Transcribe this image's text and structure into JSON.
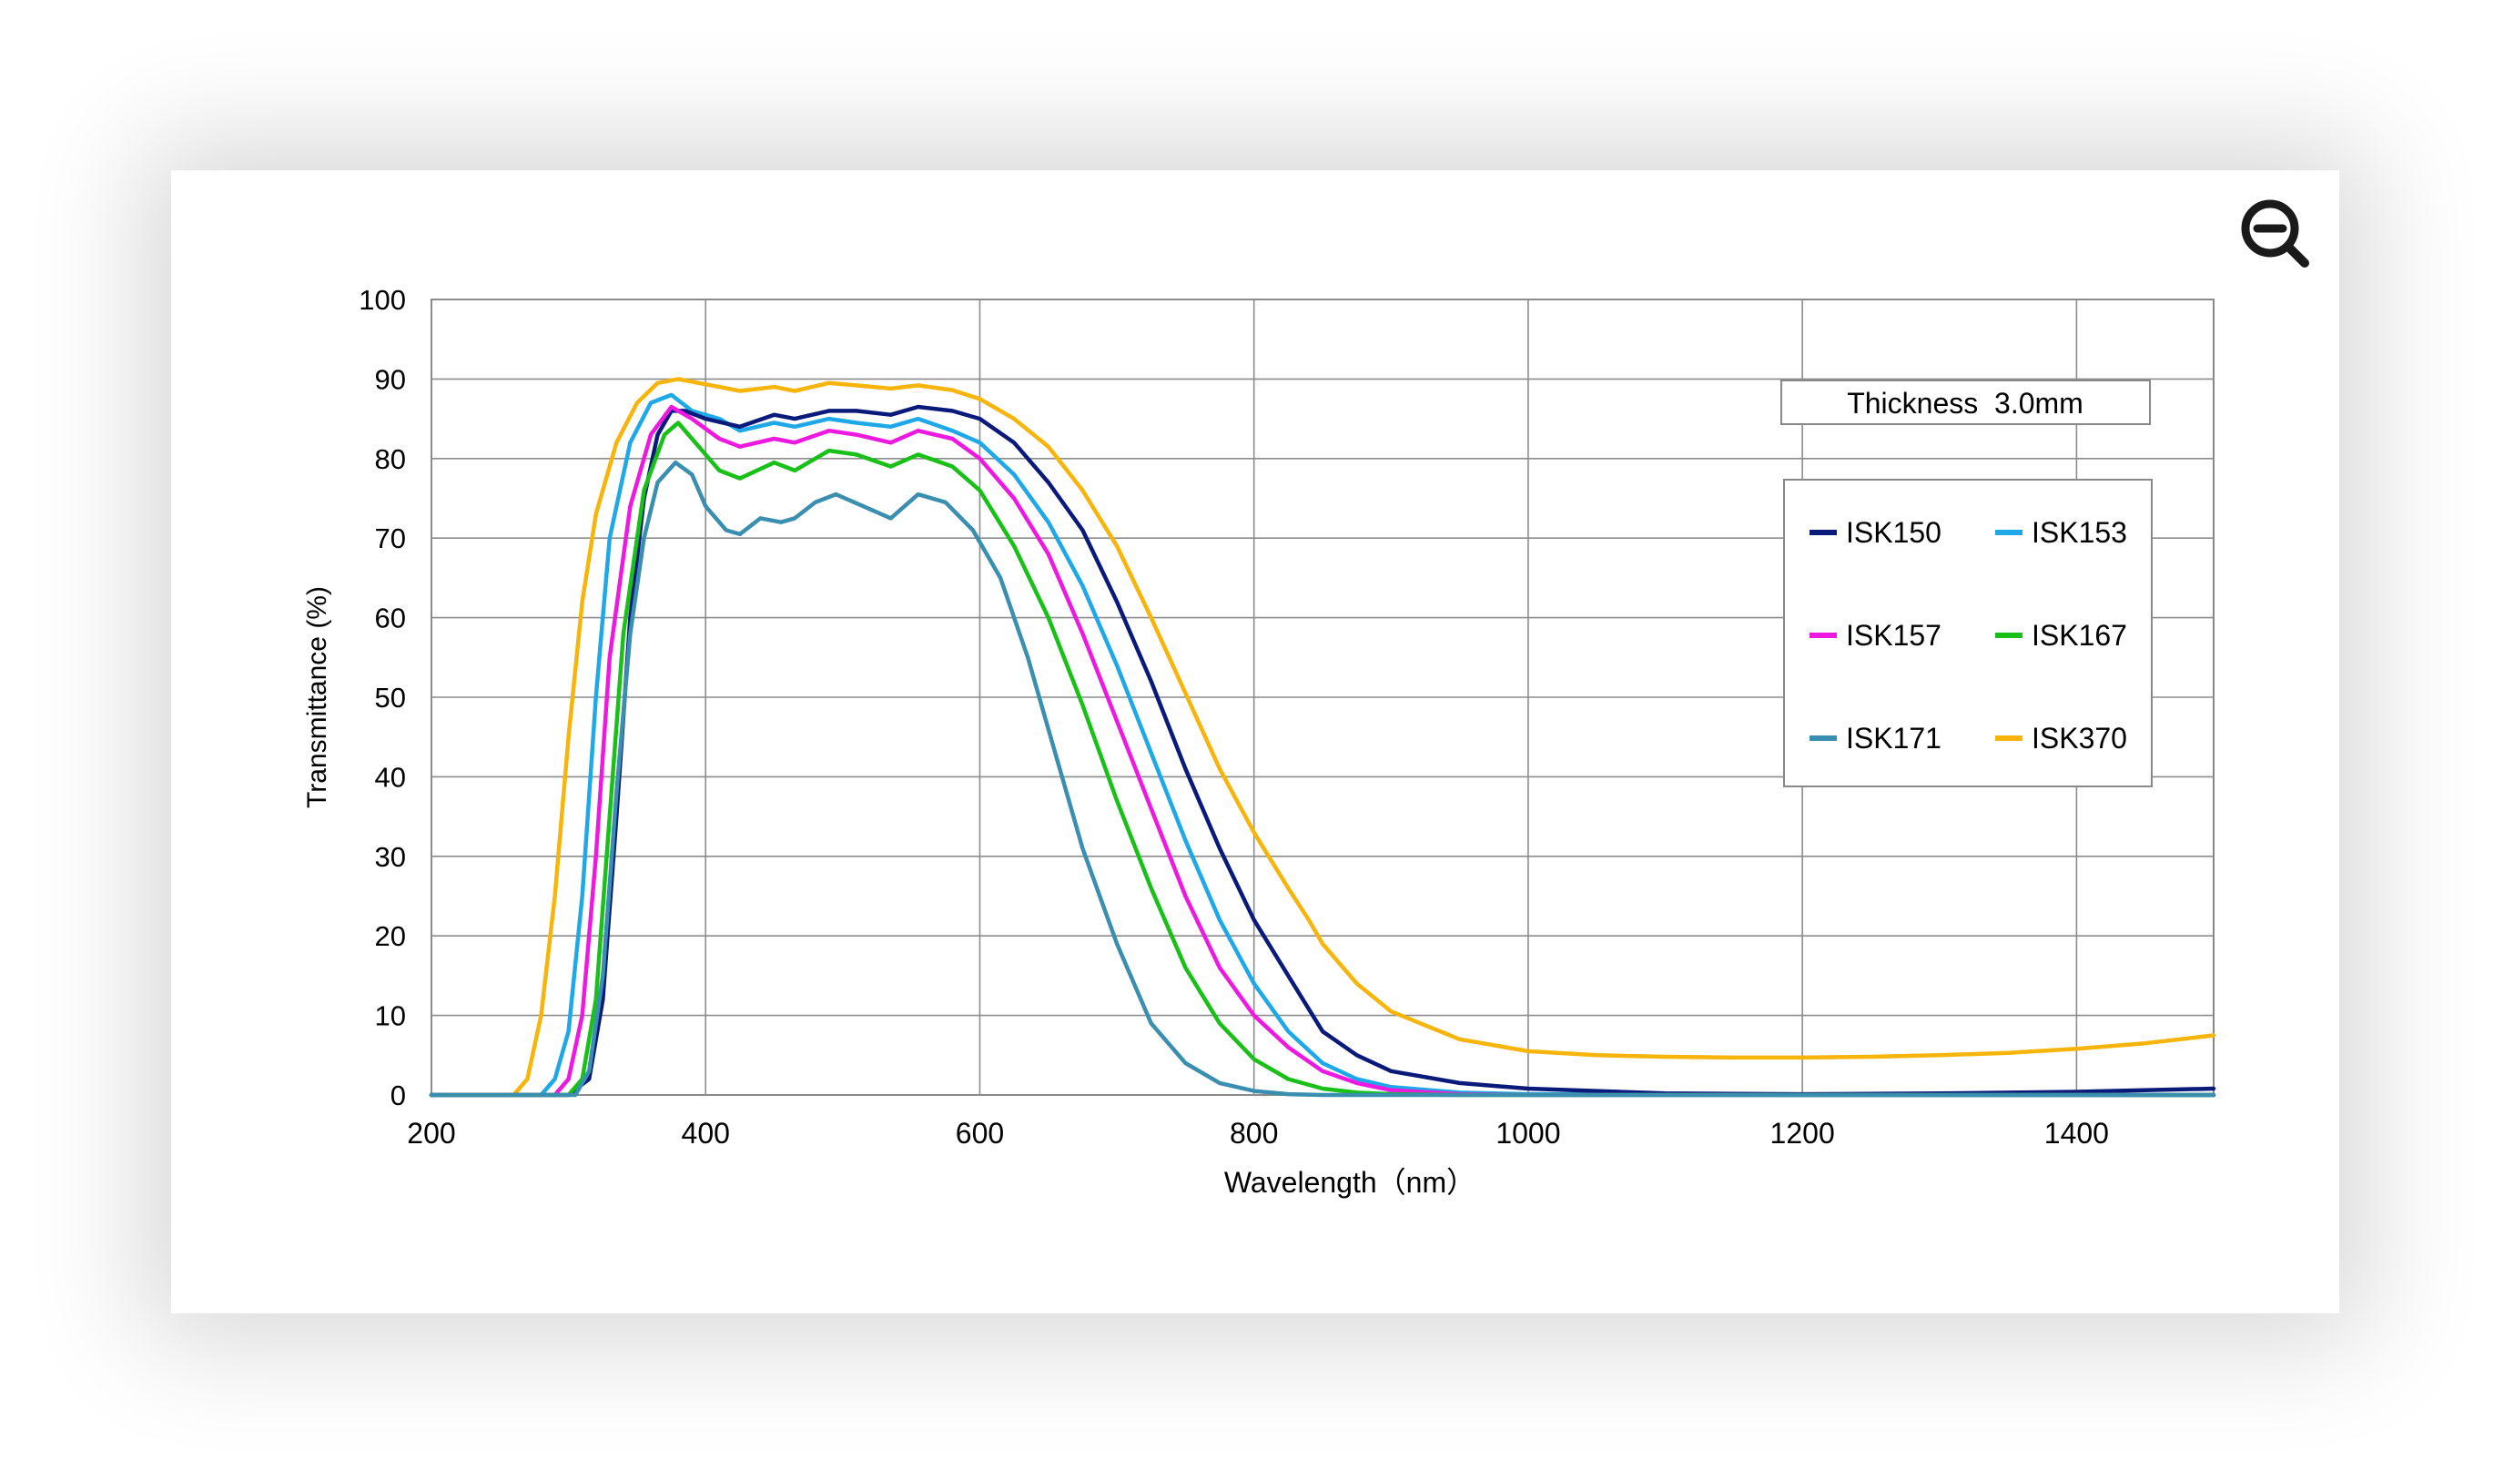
{
  "toolbar": {
    "zoom_icon": "zoom-out-icon"
  },
  "chart_data": {
    "type": "line",
    "xlabel": "Wavelength（nm）",
    "ylabel": "Transmittance (%)",
    "xlim": [
      200,
      1500
    ],
    "ylim": [
      0,
      100
    ],
    "xticks": [
      200,
      400,
      600,
      800,
      1000,
      1200,
      1400
    ],
    "yticks": [
      0,
      10,
      20,
      30,
      40,
      50,
      60,
      70,
      80,
      90,
      100
    ],
    "grid": true,
    "legend_position": "right",
    "annotation": "Thickness  3.0mm",
    "series": [
      {
        "name": "ISK150",
        "color": "#0a1a7a",
        "points": [
          [
            200,
            0
          ],
          [
            300,
            0
          ],
          [
            315,
            2
          ],
          [
            325,
            12
          ],
          [
            335,
            35
          ],
          [
            345,
            60
          ],
          [
            355,
            75
          ],
          [
            365,
            83
          ],
          [
            375,
            86
          ],
          [
            385,
            86
          ],
          [
            400,
            85
          ],
          [
            425,
            84
          ],
          [
            450,
            85.5
          ],
          [
            465,
            85
          ],
          [
            490,
            86
          ],
          [
            510,
            86
          ],
          [
            535,
            85.5
          ],
          [
            555,
            86.5
          ],
          [
            580,
            86
          ],
          [
            600,
            85
          ],
          [
            625,
            82
          ],
          [
            650,
            77
          ],
          [
            675,
            71
          ],
          [
            700,
            62
          ],
          [
            725,
            52
          ],
          [
            750,
            41
          ],
          [
            775,
            31
          ],
          [
            800,
            22
          ],
          [
            825,
            15
          ],
          [
            850,
            8
          ],
          [
            875,
            5
          ],
          [
            900,
            3
          ],
          [
            950,
            1.5
          ],
          [
            1000,
            0.8
          ],
          [
            1100,
            0.2
          ],
          [
            1200,
            0.1
          ],
          [
            1300,
            0.2
          ],
          [
            1400,
            0.4
          ],
          [
            1500,
            0.8
          ]
        ]
      },
      {
        "name": "ISK153",
        "color": "#1fa8e8",
        "points": [
          [
            200,
            0
          ],
          [
            280,
            0
          ],
          [
            290,
            2
          ],
          [
            300,
            8
          ],
          [
            310,
            25
          ],
          [
            320,
            50
          ],
          [
            330,
            70
          ],
          [
            345,
            82
          ],
          [
            360,
            87
          ],
          [
            375,
            88
          ],
          [
            390,
            86
          ],
          [
            410,
            85
          ],
          [
            425,
            83.5
          ],
          [
            450,
            84.5
          ],
          [
            465,
            84
          ],
          [
            490,
            85
          ],
          [
            510,
            84.5
          ],
          [
            535,
            84
          ],
          [
            555,
            85
          ],
          [
            580,
            83.5
          ],
          [
            600,
            82
          ],
          [
            625,
            78
          ],
          [
            650,
            72
          ],
          [
            675,
            64
          ],
          [
            700,
            54
          ],
          [
            725,
            43
          ],
          [
            750,
            32
          ],
          [
            775,
            22
          ],
          [
            800,
            14
          ],
          [
            825,
            8
          ],
          [
            850,
            4
          ],
          [
            875,
            2
          ],
          [
            900,
            1
          ],
          [
            950,
            0.3
          ],
          [
            1000,
            0.1
          ],
          [
            1200,
            0
          ],
          [
            1500,
            0
          ]
        ]
      },
      {
        "name": "ISK157",
        "color": "#ee19e0",
        "points": [
          [
            200,
            0
          ],
          [
            290,
            0
          ],
          [
            300,
            2
          ],
          [
            310,
            10
          ],
          [
            320,
            30
          ],
          [
            330,
            55
          ],
          [
            345,
            74
          ],
          [
            360,
            83
          ],
          [
            375,
            86.5
          ],
          [
            390,
            85
          ],
          [
            410,
            82.5
          ],
          [
            425,
            81.5
          ],
          [
            450,
            82.5
          ],
          [
            465,
            82
          ],
          [
            490,
            83.5
          ],
          [
            510,
            83
          ],
          [
            535,
            82
          ],
          [
            555,
            83.5
          ],
          [
            580,
            82.5
          ],
          [
            600,
            80
          ],
          [
            625,
            75
          ],
          [
            650,
            68
          ],
          [
            675,
            58
          ],
          [
            700,
            47
          ],
          [
            725,
            36
          ],
          [
            750,
            25
          ],
          [
            775,
            16
          ],
          [
            800,
            10
          ],
          [
            825,
            6
          ],
          [
            850,
            3
          ],
          [
            875,
            1.5
          ],
          [
            900,
            0.6
          ],
          [
            950,
            0.1
          ],
          [
            1000,
            0
          ],
          [
            1500,
            0
          ]
        ]
      },
      {
        "name": "ISK167",
        "color": "#18c018",
        "points": [
          [
            200,
            0
          ],
          [
            300,
            0
          ],
          [
            310,
            2
          ],
          [
            320,
            12
          ],
          [
            330,
            35
          ],
          [
            340,
            58
          ],
          [
            355,
            76
          ],
          [
            370,
            83
          ],
          [
            380,
            84.5
          ],
          [
            390,
            82.5
          ],
          [
            410,
            78.5
          ],
          [
            425,
            77.5
          ],
          [
            450,
            79.5
          ],
          [
            465,
            78.5
          ],
          [
            490,
            81
          ],
          [
            510,
            80.5
          ],
          [
            535,
            79
          ],
          [
            555,
            80.5
          ],
          [
            580,
            79
          ],
          [
            600,
            76
          ],
          [
            625,
            69
          ],
          [
            650,
            60
          ],
          [
            675,
            49
          ],
          [
            700,
            37
          ],
          [
            725,
            26
          ],
          [
            750,
            16
          ],
          [
            775,
            9
          ],
          [
            800,
            4.5
          ],
          [
            825,
            2
          ],
          [
            850,
            0.8
          ],
          [
            875,
            0.3
          ],
          [
            900,
            0.1
          ],
          [
            950,
            0
          ],
          [
            1500,
            0
          ]
        ]
      },
      {
        "name": "ISK171",
        "color": "#3a8fb0",
        "points": [
          [
            200,
            0
          ],
          [
            305,
            0
          ],
          [
            315,
            3
          ],
          [
            325,
            15
          ],
          [
            335,
            38
          ],
          [
            345,
            58
          ],
          [
            355,
            70
          ],
          [
            365,
            77
          ],
          [
            378,
            79.5
          ],
          [
            390,
            78
          ],
          [
            400,
            74
          ],
          [
            415,
            71
          ],
          [
            425,
            70.5
          ],
          [
            440,
            72.5
          ],
          [
            455,
            72
          ],
          [
            465,
            72.5
          ],
          [
            480,
            74.5
          ],
          [
            495,
            75.5
          ],
          [
            515,
            74
          ],
          [
            535,
            72.5
          ],
          [
            555,
            75.5
          ],
          [
            575,
            74.5
          ],
          [
            595,
            71
          ],
          [
            615,
            65
          ],
          [
            635,
            55
          ],
          [
            655,
            43
          ],
          [
            675,
            31
          ],
          [
            700,
            19
          ],
          [
            725,
            9
          ],
          [
            750,
            4
          ],
          [
            775,
            1.5
          ],
          [
            800,
            0.5
          ],
          [
            825,
            0.1
          ],
          [
            850,
            0
          ],
          [
            1500,
            0
          ]
        ]
      },
      {
        "name": "ISK370",
        "color": "#f7b40b",
        "points": [
          [
            200,
            0
          ],
          [
            260,
            0
          ],
          [
            270,
            2
          ],
          [
            280,
            10
          ],
          [
            290,
            25
          ],
          [
            300,
            45
          ],
          [
            310,
            62
          ],
          [
            320,
            73
          ],
          [
            335,
            82
          ],
          [
            350,
            87
          ],
          [
            365,
            89.5
          ],
          [
            380,
            90
          ],
          [
            395,
            89.5
          ],
          [
            410,
            89
          ],
          [
            425,
            88.5
          ],
          [
            450,
            89
          ],
          [
            465,
            88.5
          ],
          [
            490,
            89.5
          ],
          [
            510,
            89.2
          ],
          [
            535,
            88.8
          ],
          [
            555,
            89.2
          ],
          [
            580,
            88.6
          ],
          [
            600,
            87.5
          ],
          [
            625,
            85
          ],
          [
            650,
            81.5
          ],
          [
            675,
            76
          ],
          [
            700,
            69
          ],
          [
            725,
            60
          ],
          [
            750,
            50.5
          ],
          [
            775,
            41
          ],
          [
            800,
            33
          ],
          [
            825,
            26
          ],
          [
            840,
            22
          ],
          [
            850,
            19
          ],
          [
            875,
            14
          ],
          [
            900,
            10.5
          ],
          [
            950,
            7
          ],
          [
            1000,
            5.5
          ],
          [
            1050,
            5
          ],
          [
            1100,
            4.8
          ],
          [
            1150,
            4.7
          ],
          [
            1200,
            4.7
          ],
          [
            1250,
            4.8
          ],
          [
            1300,
            5
          ],
          [
            1350,
            5.3
          ],
          [
            1400,
            5.8
          ],
          [
            1450,
            6.5
          ],
          [
            1500,
            7.5
          ]
        ]
      }
    ]
  }
}
